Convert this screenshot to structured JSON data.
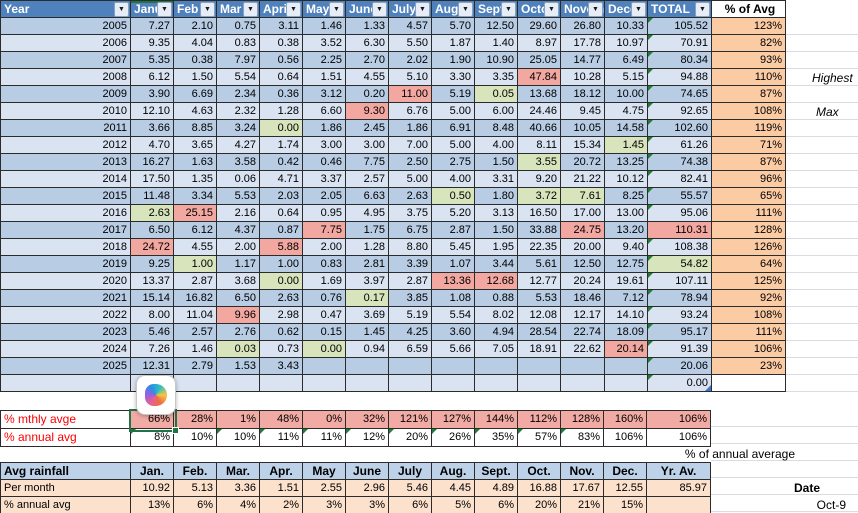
{
  "palette": {
    "header_blue": "#4F81BD",
    "band_dark": "#B8CCE4",
    "band_light": "#D9E3F2",
    "highlight_red": "#F2A8A0",
    "highlight_green": "#D8E4BC",
    "pct_orange": "#FBCBA4",
    "pct_row_pink": "#F2ABA4",
    "label_red": "#FF0000",
    "selection_green": "#217346",
    "bottom_header_blue": "#BDD2E9",
    "bottom_peach": "#FCE1CC"
  },
  "main_table": {
    "year_header": "Year",
    "month_headers": [
      "Janu",
      "Feb",
      "Mar",
      "Apri",
      "May",
      "June",
      "July",
      "Augu",
      "Sept",
      "Octob",
      "Novem",
      "Dece"
    ],
    "total_header": "TOTAL",
    "pct_header": "% of Avg",
    "rows": [
      {
        "year": "2005",
        "values": [
          "7.27",
          "2.10",
          "0.75",
          "3.11",
          "1.46",
          "1.33",
          "4.57",
          "5.70",
          "12.50",
          "29.60",
          "26.80",
          "10.33"
        ],
        "total": "105.52",
        "pct": "123%"
      },
      {
        "year": "2006",
        "values": [
          "9.35",
          "4.04",
          "0.83",
          "0.38",
          "3.52",
          "6.30",
          "5.50",
          "1.87",
          "1.40",
          "8.97",
          "17.78",
          "10.97"
        ],
        "total": "70.91",
        "pct": "82%"
      },
      {
        "year": "2007",
        "values": [
          "5.35",
          "0.38",
          "7.97",
          "0.56",
          "2.25",
          "2.70",
          "2.02",
          "1.90",
          "10.90",
          "25.05",
          "14.77",
          "6.49"
        ],
        "total": "80.34",
        "pct": "93%"
      },
      {
        "year": "2008",
        "values": [
          "6.12",
          "1.50",
          "5.54",
          "0.64",
          "1.51",
          "4.55",
          "5.10",
          "3.30",
          "3.35",
          "47.84",
          "10.28",
          "5.15"
        ],
        "total": "94.88",
        "pct": "110%",
        "red": [
          9
        ]
      },
      {
        "year": "2009",
        "values": [
          "3.90",
          "6.69",
          "2.34",
          "0.36",
          "3.12",
          "0.20",
          "11.00",
          "5.19",
          "0.05",
          "13.68",
          "18.12",
          "10.00"
        ],
        "total": "74.65",
        "pct": "87%",
        "red": [
          6
        ],
        "green": [
          8
        ]
      },
      {
        "year": "2010",
        "values": [
          "12.10",
          "4.63",
          "2.32",
          "1.28",
          "6.60",
          "9.30",
          "6.76",
          "5.00",
          "6.00",
          "24.46",
          "9.45",
          "4.75"
        ],
        "total": "92.65",
        "pct": "108%",
        "red": [
          5
        ]
      },
      {
        "year": "2011",
        "values": [
          "3.66",
          "8.85",
          "3.24",
          "0.00",
          "1.86",
          "2.45",
          "1.86",
          "6.91",
          "8.48",
          "40.66",
          "10.05",
          "14.58"
        ],
        "total": "102.60",
        "pct": "119%",
        "green": [
          3
        ]
      },
      {
        "year": "2012",
        "values": [
          "4.70",
          "3.65",
          "4.27",
          "1.74",
          "3.00",
          "3.00",
          "7.00",
          "5.00",
          "4.00",
          "8.11",
          "15.34",
          "1.45"
        ],
        "total": "61.26",
        "pct": "71%",
        "green": [
          11
        ]
      },
      {
        "year": "2013",
        "values": [
          "16.27",
          "1.63",
          "3.58",
          "0.42",
          "0.46",
          "7.75",
          "2.50",
          "2.75",
          "1.50",
          "3.55",
          "20.72",
          "13.25"
        ],
        "total": "74.38",
        "pct": "87%",
        "green": [
          9
        ]
      },
      {
        "year": "2014",
        "values": [
          "17.50",
          "1.35",
          "0.06",
          "4.71",
          "3.37",
          "2.57",
          "5.00",
          "4.00",
          "3.31",
          "9.20",
          "21.22",
          "10.12"
        ],
        "total": "82.41",
        "pct": "96%"
      },
      {
        "year": "2015",
        "values": [
          "11.48",
          "3.34",
          "5.53",
          "2.03",
          "2.05",
          "6.63",
          "2.63",
          "0.50",
          "1.80",
          "3.72",
          "7.61",
          "8.25"
        ],
        "total": "55.57",
        "pct": "65%",
        "green": [
          7,
          9,
          10
        ]
      },
      {
        "year": "2016",
        "values": [
          "2.63",
          "25.15",
          "2.16",
          "0.64",
          "0.95",
          "4.95",
          "3.75",
          "5.20",
          "3.13",
          "16.50",
          "17.00",
          "13.00"
        ],
        "total": "95.06",
        "pct": "111%",
        "green": [
          0
        ],
        "red": [
          1
        ]
      },
      {
        "year": "2017",
        "values": [
          "6.50",
          "6.12",
          "4.37",
          "0.87",
          "7.75",
          "1.75",
          "6.75",
          "2.87",
          "1.50",
          "33.88",
          "24.75",
          "13.20"
        ],
        "total": "110.31",
        "pct": "128%",
        "red": [
          4,
          10
        ],
        "total_hl": "red",
        "tri": false
      },
      {
        "year": "2018",
        "values": [
          "24.72",
          "4.55",
          "2.00",
          "5.88",
          "2.00",
          "1.28",
          "8.80",
          "5.45",
          "1.95",
          "22.35",
          "20.00",
          "9.40"
        ],
        "total": "108.38",
        "pct": "126%",
        "red": [
          0,
          3
        ]
      },
      {
        "year": "2019",
        "values": [
          "9.25",
          "1.00",
          "1.17",
          "1.00",
          "0.83",
          "2.81",
          "3.39",
          "1.07",
          "3.44",
          "5.61",
          "12.50",
          "12.75"
        ],
        "total": "54.82",
        "pct": "64%",
        "green": [
          1
        ],
        "total_hl": "green"
      },
      {
        "year": "2020",
        "values": [
          "13.37",
          "2.87",
          "3.68",
          "0.00",
          "1.69",
          "3.97",
          "2.87",
          "13.36",
          "12.68",
          "12.77",
          "20.24",
          "19.61"
        ],
        "total": "107.11",
        "pct": "125%",
        "green": [
          3
        ],
        "red": [
          7,
          8
        ]
      },
      {
        "year": "2021",
        "values": [
          "15.14",
          "16.82",
          "6.50",
          "2.63",
          "0.76",
          "0.17",
          "3.85",
          "1.08",
          "0.88",
          "5.53",
          "18.46",
          "7.12"
        ],
        "total": "78.94",
        "pct": "92%",
        "green": [
          5
        ]
      },
      {
        "year": "2022",
        "values": [
          "8.00",
          "11.04",
          "9.96",
          "2.98",
          "0.47",
          "3.69",
          "5.19",
          "5.54",
          "8.02",
          "12.08",
          "12.17",
          "14.10"
        ],
        "total": "93.24",
        "pct": "108%",
        "red": [
          2
        ]
      },
      {
        "year": "2023",
        "values": [
          "5.46",
          "2.57",
          "2.76",
          "0.62",
          "0.15",
          "1.45",
          "4.25",
          "3.60",
          "4.94",
          "28.54",
          "22.74",
          "18.09"
        ],
        "total": "95.17",
        "pct": "111%"
      },
      {
        "year": "2024",
        "values": [
          "7.26",
          "1.46",
          "0.03",
          "0.73",
          "0.00",
          "0.94",
          "6.59",
          "5.66",
          "7.05",
          "18.91",
          "22.62",
          "20.14"
        ],
        "total": "91.39",
        "pct": "106%",
        "green": [
          2,
          4
        ],
        "red": [
          11
        ]
      },
      {
        "year": "2025",
        "values": [
          "12.31",
          "2.79",
          "1.53",
          "3.43",
          "",
          "",
          "",
          "",
          "",
          "",
          "",
          ""
        ],
        "total": "20.06",
        "pct": "23%"
      },
      {
        "year": "",
        "values": [
          "",
          "",
          "",
          "",
          "",
          "",
          "",
          "",
          "",
          "",
          "",
          ""
        ],
        "total": "0.00",
        "pct": "",
        "blue_corner": true
      }
    ]
  },
  "pct_rows": {
    "monthly": {
      "label": "% mthly avge",
      "values": [
        "66%",
        "28%",
        "1%",
        "48%",
        "0%",
        "32%",
        "121%",
        "127%",
        "144%",
        "112%",
        "128%",
        "160%"
      ],
      "total": "106%"
    },
    "annual": {
      "label": "% annual avg",
      "values": [
        "8%",
        "10%",
        "10%",
        "11%",
        "11%",
        "12%",
        "20%",
        "26%",
        "35%",
        "57%",
        "83%",
        "106%"
      ],
      "total": "106%",
      "tri": [
        0,
        1,
        2,
        3,
        4,
        5,
        6,
        7,
        8,
        9,
        10
      ]
    }
  },
  "bottom_table": {
    "label_header": "Avg rainfall",
    "month_headers": [
      "Jan.",
      "Feb.",
      "Mar.",
      "Apr.",
      "May",
      "June",
      "July",
      "Aug.",
      "Sept.",
      "Oct.",
      "Nov.",
      "Dec."
    ],
    "total_header": "Yr. Av.",
    "rows": [
      {
        "label": "Per month",
        "values": [
          "10.92",
          "5.13",
          "3.36",
          "1.51",
          "2.55",
          "2.96",
          "5.46",
          "4.45",
          "4.89",
          "16.88",
          "17.67",
          "12.55"
        ],
        "total": "85.97"
      },
      {
        "label": "% annual avg",
        "values": [
          "13%",
          "6%",
          "4%",
          "2%",
          "3%",
          "3%",
          "6%",
          "5%",
          "6%",
          "20%",
          "21%",
          "15%"
        ],
        "total": ""
      }
    ]
  },
  "annotations": {
    "highest": "Highest",
    "max": "Max",
    "pct_of_annual": "% of annual average",
    "date_label": "Date",
    "date_value": "Oct-9"
  }
}
